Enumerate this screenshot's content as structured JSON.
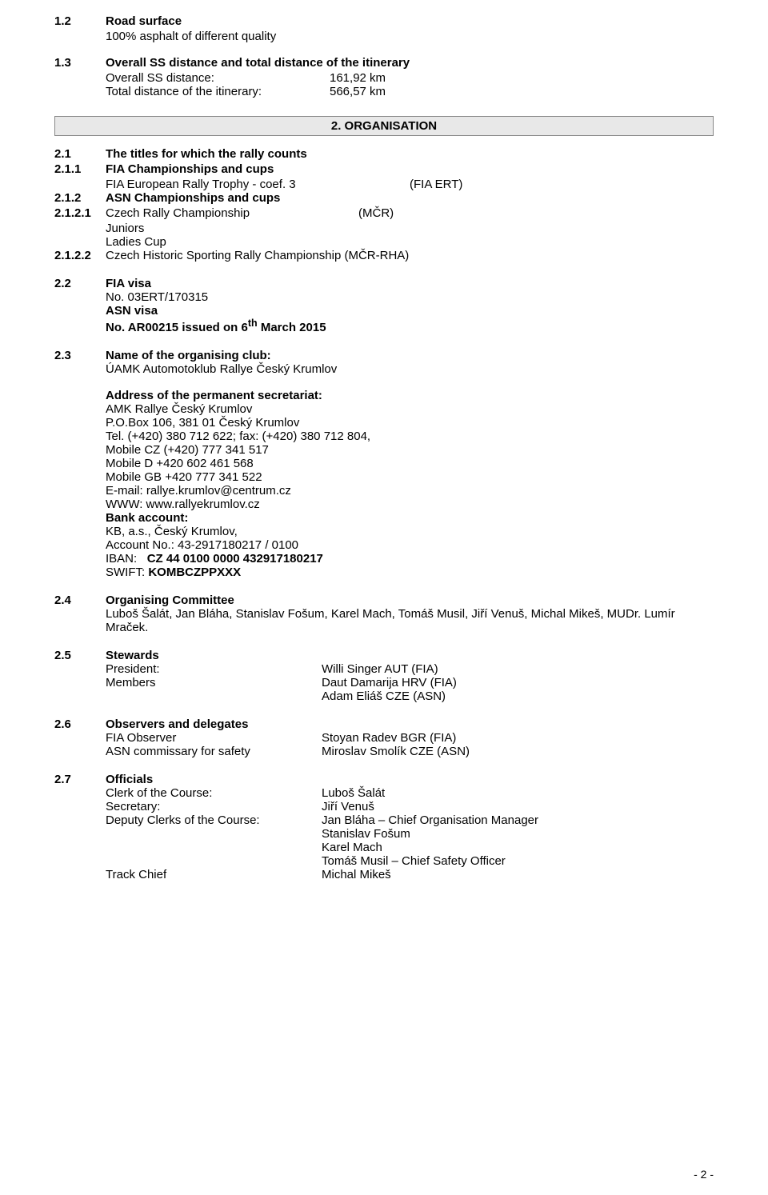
{
  "s1_2": {
    "num": "1.2",
    "title": "Road surface",
    "line1": "100% asphalt of different quality"
  },
  "s1_3": {
    "num": "1.3",
    "title": "Overall SS distance and total distance of the itinerary",
    "r1_label": "Overall SS distance:",
    "r1_val": "161,92 km",
    "r2_label": "Total distance of the itinerary:",
    "r2_val": "566,57 km"
  },
  "org_header": "2. ORGANISATION",
  "s2_1": {
    "num": "2.1",
    "title": "The titles for which the rally counts"
  },
  "s2_1_1": {
    "num": "2.1.1",
    "title": "FIA Championships and cups",
    "line1": "FIA European Rally Trophy - coef. 3",
    "code1": "(FIA ERT)"
  },
  "s2_1_2": {
    "num": "2.1.2",
    "title": "ASN Championships and cups"
  },
  "s2_1_2_1": {
    "num": "2.1.2.1",
    "line1": "Czech Rally Championship",
    "code1": "(MČR)",
    "line2": "Juniors",
    "line3": "Ladies Cup"
  },
  "s2_1_2_2": {
    "num": "2.1.2.2",
    "line1": "Czech Historic Sporting Rally Championship (MČR-RHA)"
  },
  "s2_2": {
    "num": "2.2",
    "l1": "FIA visa",
    "l2": "No. 03ERT/170315",
    "l3": "ASN visa",
    "l4_a": "No. AR00215 issued on 6",
    "l4_sup": "th",
    "l4_b": " March 2015"
  },
  "s2_3": {
    "num": "2.3",
    "title": "Name of the organising club:",
    "org": "ÚAMK Automotoklub Rallye Český Krumlov",
    "addr_title": "Address of the permanent secretariat:",
    "addr1": "AMK Rallye Český Krumlov",
    "addr2": "P.O.Box 106, 381 01 Český Krumlov",
    "tel": "Tel. (+420) 380 712 622; fax: (+420) 380 712 804,",
    "mob1": "Mobile CZ (+420) 777 341 517",
    "mob2": "Mobile D +420 602 461 568",
    "mob3": "Mobile GB +420 777 341 522",
    "email": "E-mail: rallye.krumlov@centrum.cz",
    "www": "WWW: www.rallyekrumlov.cz",
    "bank_title": "Bank account:",
    "bank1": "KB, a.s., Český Krumlov,",
    "bank2": "Account No.: 43-2917180217 / 0100",
    "iban_l": "IBAN:",
    "iban_v": "CZ 44 0100 0000 432917180217",
    "swift_l": "SWIFT:",
    "swift_v": "KOMBCZPPXXX"
  },
  "s2_4": {
    "num": "2.4",
    "title": "Organising Committee",
    "line1": "Luboš Šalát, Jan Bláha, Stanislav Fošum, Karel Mach, Tomáš Musil, Jiří Venuš, Michal Mikeš, MUDr. Lumír Mraček."
  },
  "s2_5": {
    "num": "2.5",
    "title": "Stewards",
    "r1l": "President:",
    "r1r": "Willi Singer AUT   (FIA)",
    "r2l": "Members",
    "r2r": "Daut Damarija HRV (FIA)",
    "r3r": "Adam Eliáš CZE (ASN)"
  },
  "s2_6": {
    "num": "2.6",
    "title": "Observers and delegates",
    "r1l": "FIA Observer",
    "r1r": "Stoyan Radev BGR  (FIA)",
    "r2l": "ASN commissary for safety",
    "r2r": "Miroslav Smolík CZE (ASN)"
  },
  "s2_7": {
    "num": "2.7",
    "title": "Officials",
    "r1l": "Clerk of the Course:",
    "r1r": "Luboš Šalát",
    "r2l": "Secretary:",
    "r2r": "Jiří Venuš",
    "r3l": "Deputy Clerks of the Course:",
    "r3r": "Jan Bláha – Chief Organisation Manager",
    "r4r": "Stanislav Fošum",
    "r5r": "Karel Mach",
    "r6r": "Tomáš Musil – Chief Safety Officer",
    "r7l": "Track Chief",
    "r7r": "Michal Mikeš"
  },
  "page_num": "- 2 -"
}
